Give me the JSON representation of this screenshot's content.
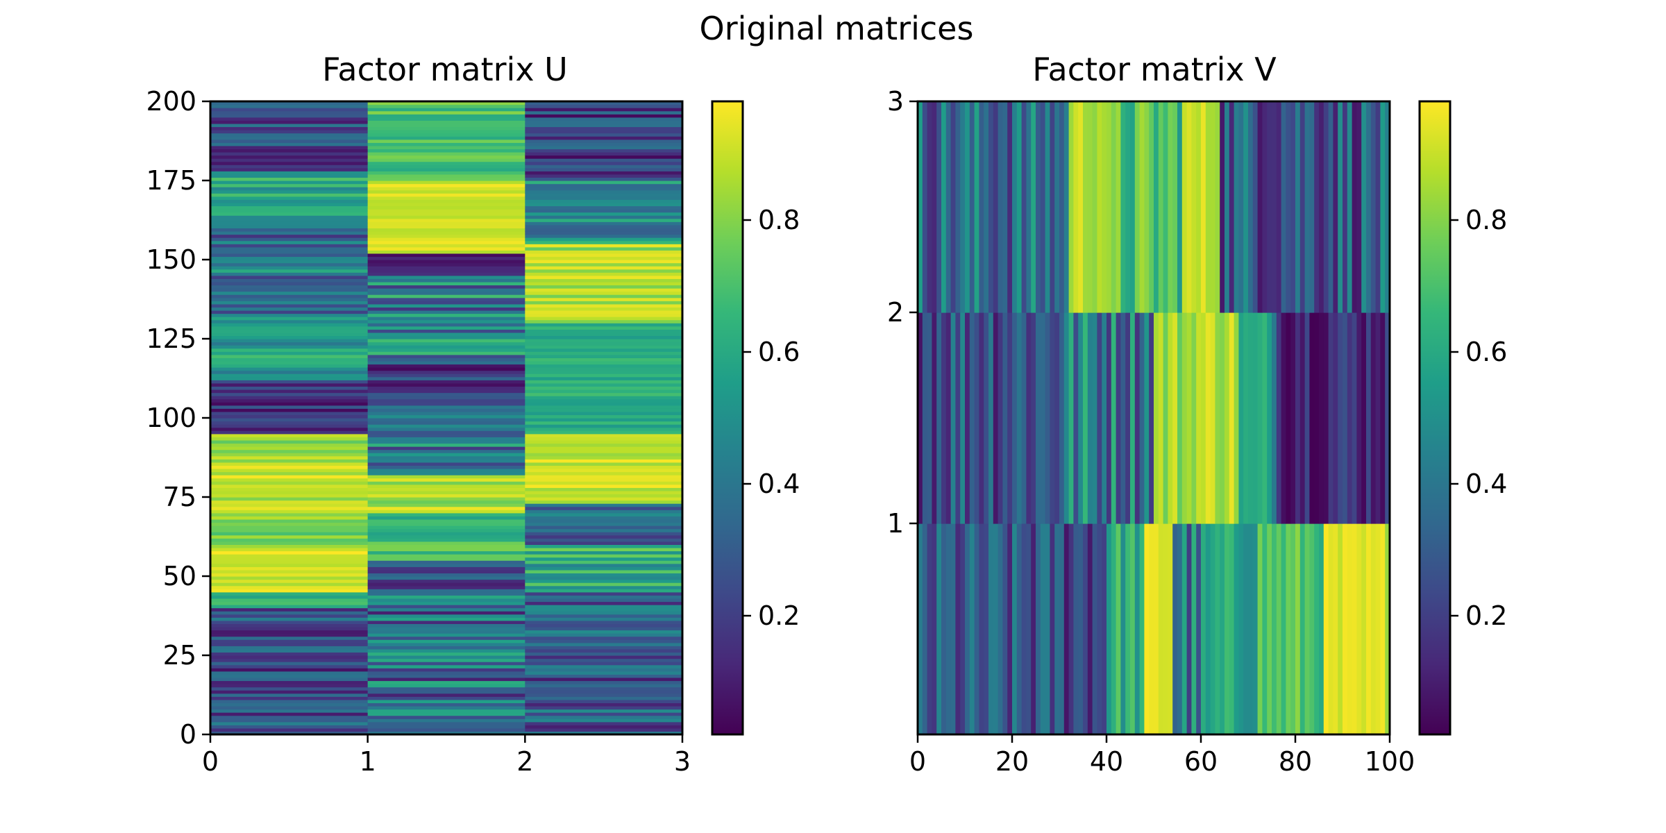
{
  "figure": {
    "suptitle": "Original matrices"
  },
  "colormap": {
    "name": "viridis",
    "stops": [
      "#440154",
      "#482878",
      "#3e4989",
      "#31688e",
      "#26828e",
      "#1f9e89",
      "#35b779",
      "#6ece58",
      "#b5de2b",
      "#fde725"
    ],
    "range": [
      0.0,
      1.0
    ]
  },
  "chart_data": [
    {
      "type": "heatmap",
      "title": "Factor matrix U",
      "rows": 200,
      "cols": 3,
      "xlim": [
        0,
        3
      ],
      "ylim": [
        0,
        200
      ],
      "xticks": [
        0,
        1,
        2,
        3
      ],
      "xtick_labels": [
        "0",
        "1",
        "2",
        "3"
      ],
      "yticks": [
        0,
        25,
        50,
        75,
        100,
        125,
        150,
        175,
        200
      ],
      "ytick_labels": [
        "0",
        "25",
        "50",
        "75",
        "100",
        "125",
        "150",
        "175",
        "200"
      ],
      "column_segments": [
        [
          {
            "from": 0,
            "to": 40,
            "level": 0.22,
            "spread": 0.22
          },
          {
            "from": 40,
            "to": 45,
            "level": 0.62,
            "spread": 0.12
          },
          {
            "from": 45,
            "to": 60,
            "level": 0.93,
            "spread": 0.08
          },
          {
            "from": 60,
            "to": 70,
            "level": 0.82,
            "spread": 0.12
          },
          {
            "from": 70,
            "to": 88,
            "level": 0.9,
            "spread": 0.1
          },
          {
            "from": 88,
            "to": 95,
            "level": 0.8,
            "spread": 0.12
          },
          {
            "from": 95,
            "to": 112,
            "level": 0.15,
            "spread": 0.15
          },
          {
            "from": 112,
            "to": 130,
            "level": 0.55,
            "spread": 0.15
          },
          {
            "from": 130,
            "to": 148,
            "level": 0.38,
            "spread": 0.25
          },
          {
            "from": 148,
            "to": 160,
            "level": 0.35,
            "spread": 0.2
          },
          {
            "from": 160,
            "to": 178,
            "level": 0.58,
            "spread": 0.15
          },
          {
            "from": 178,
            "to": 186,
            "level": 0.1,
            "spread": 0.08
          },
          {
            "from": 186,
            "to": 200,
            "level": 0.28,
            "spread": 0.22
          }
        ],
        [
          {
            "from": 0,
            "to": 45,
            "level": 0.35,
            "spread": 0.28
          },
          {
            "from": 45,
            "to": 55,
            "level": 0.22,
            "spread": 0.18
          },
          {
            "from": 55,
            "to": 70,
            "level": 0.7,
            "spread": 0.15
          },
          {
            "from": 70,
            "to": 82,
            "level": 0.88,
            "spread": 0.12
          },
          {
            "from": 82,
            "to": 92,
            "level": 0.4,
            "spread": 0.25
          },
          {
            "from": 92,
            "to": 104,
            "level": 0.35,
            "spread": 0.15
          },
          {
            "from": 104,
            "to": 120,
            "level": 0.2,
            "spread": 0.18
          },
          {
            "from": 120,
            "to": 145,
            "level": 0.42,
            "spread": 0.28
          },
          {
            "from": 145,
            "to": 152,
            "level": 0.08,
            "spread": 0.06
          },
          {
            "from": 152,
            "to": 175,
            "level": 0.94,
            "spread": 0.06
          },
          {
            "from": 175,
            "to": 200,
            "level": 0.72,
            "spread": 0.12
          }
        ],
        [
          {
            "from": 0,
            "to": 45,
            "level": 0.28,
            "spread": 0.22
          },
          {
            "from": 45,
            "to": 60,
            "level": 0.62,
            "spread": 0.18
          },
          {
            "from": 60,
            "to": 73,
            "level": 0.3,
            "spread": 0.22
          },
          {
            "from": 73,
            "to": 95,
            "level": 0.92,
            "spread": 0.08
          },
          {
            "from": 95,
            "to": 130,
            "level": 0.62,
            "spread": 0.08
          },
          {
            "from": 130,
            "to": 155,
            "level": 0.88,
            "spread": 0.12
          },
          {
            "from": 155,
            "to": 175,
            "level": 0.45,
            "spread": 0.22
          },
          {
            "from": 175,
            "to": 200,
            "level": 0.2,
            "spread": 0.18
          }
        ]
      ],
      "colorbar": {
        "range": [
          0.02,
          0.98
        ],
        "ticks": [
          0.2,
          0.4,
          0.6,
          0.8
        ],
        "tick_labels": [
          "0.2",
          "0.4",
          "0.6",
          "0.8"
        ]
      }
    },
    {
      "type": "heatmap",
      "title": "Factor matrix V",
      "rows": 3,
      "cols": 100,
      "xlim": [
        0,
        100
      ],
      "ylim": [
        0,
        3
      ],
      "xticks": [
        0,
        20,
        40,
        60,
        80,
        100
      ],
      "xtick_labels": [
        "0",
        "20",
        "40",
        "60",
        "80",
        "100"
      ],
      "yticks": [
        1,
        2,
        3
      ],
      "ytick_labels": [
        "1",
        "2",
        "3"
      ],
      "row_segments": [
        [
          {
            "from": 0,
            "to": 40,
            "level": 0.25,
            "spread": 0.22
          },
          {
            "from": 40,
            "to": 48,
            "level": 0.62,
            "spread": 0.15
          },
          {
            "from": 48,
            "to": 54,
            "level": 0.95,
            "spread": 0.05
          },
          {
            "from": 54,
            "to": 62,
            "level": 0.4,
            "spread": 0.28
          },
          {
            "from": 62,
            "to": 72,
            "level": 0.58,
            "spread": 0.12
          },
          {
            "from": 72,
            "to": 86,
            "level": 0.72,
            "spread": 0.12
          },
          {
            "from": 86,
            "to": 100,
            "level": 0.92,
            "spread": 0.08
          }
        ],
        [
          {
            "from": 0,
            "to": 30,
            "level": 0.3,
            "spread": 0.25
          },
          {
            "from": 30,
            "to": 50,
            "level": 0.42,
            "spread": 0.28
          },
          {
            "from": 50,
            "to": 58,
            "level": 0.85,
            "spread": 0.12
          },
          {
            "from": 58,
            "to": 68,
            "level": 0.9,
            "spread": 0.1
          },
          {
            "from": 68,
            "to": 76,
            "level": 0.55,
            "spread": 0.15
          },
          {
            "from": 76,
            "to": 100,
            "level": 0.15,
            "spread": 0.15
          }
        ],
        [
          {
            "from": 0,
            "to": 32,
            "level": 0.35,
            "spread": 0.25
          },
          {
            "from": 32,
            "to": 40,
            "level": 0.9,
            "spread": 0.08
          },
          {
            "from": 40,
            "to": 56,
            "level": 0.7,
            "spread": 0.18
          },
          {
            "from": 56,
            "to": 64,
            "level": 0.9,
            "spread": 0.08
          },
          {
            "from": 64,
            "to": 100,
            "level": 0.3,
            "spread": 0.25
          }
        ]
      ],
      "colorbar": {
        "range": [
          0.02,
          0.98
        ],
        "ticks": [
          0.2,
          0.4,
          0.6,
          0.8
        ],
        "tick_labels": [
          "0.2",
          "0.4",
          "0.6",
          "0.8"
        ]
      }
    }
  ]
}
